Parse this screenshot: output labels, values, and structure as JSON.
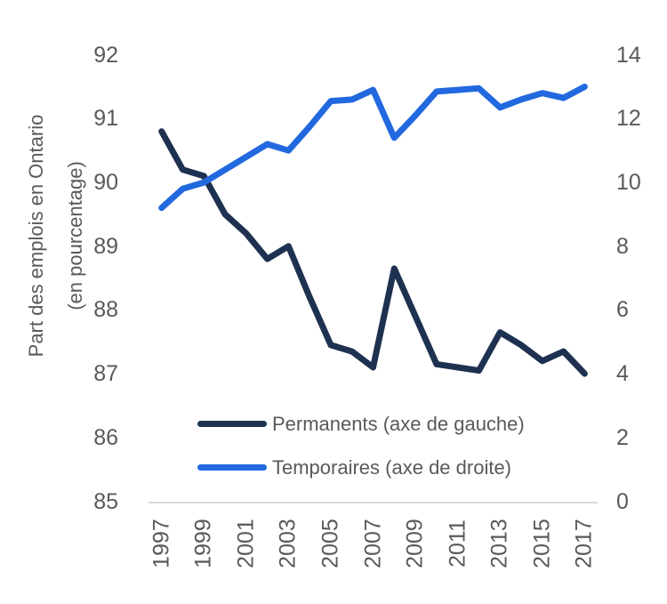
{
  "chart_data": {
    "type": "line",
    "title": "",
    "y_axis_title_lines": [
      "Part des emplois en Ontario",
      "(en pourcentage)"
    ],
    "categories": [
      1997,
      1998,
      1999,
      2000,
      2001,
      2002,
      2003,
      2004,
      2005,
      2006,
      2007,
      2008,
      2009,
      2010,
      2011,
      2012,
      2013,
      2014,
      2015,
      2016,
      2017
    ],
    "series": [
      {
        "name": "Permanents (axe de gauche)",
        "axis": "left",
        "color": "#1e3150",
        "values": [
          90.8,
          90.2,
          90.1,
          89.5,
          89.2,
          88.8,
          89.0,
          88.2,
          87.45,
          87.35,
          87.1,
          88.65,
          87.9,
          87.15,
          87.1,
          87.05,
          87.65,
          87.45,
          87.2,
          87.35,
          87.0
        ]
      },
      {
        "name": "Temporaires (axe de droite)",
        "axis": "right",
        "color": "#2268df",
        "values": [
          9.2,
          9.8,
          10.0,
          10.4,
          10.8,
          11.2,
          11.0,
          11.75,
          12.55,
          12.6,
          12.9,
          11.4,
          12.1,
          12.85,
          12.9,
          12.95,
          12.35,
          12.6,
          12.8,
          12.65,
          13.0
        ]
      }
    ],
    "left_axis": {
      "min": 85,
      "max": 92,
      "ticks": [
        92,
        91,
        90,
        89,
        88,
        87,
        86,
        85
      ]
    },
    "right_axis": {
      "min": 0,
      "max": 14,
      "ticks": [
        14,
        12,
        10,
        8,
        6,
        4,
        2,
        0
      ]
    },
    "x_tick_labels": [
      "1997",
      "1999",
      "2001",
      "2003",
      "2005",
      "2007",
      "2009",
      "2011",
      "2013",
      "2015",
      "2017"
    ],
    "grid": "off",
    "legend_position": "bottom-center-inside",
    "axis_line_color": "#d9d9d9",
    "tick_label_color": "#595959"
  }
}
